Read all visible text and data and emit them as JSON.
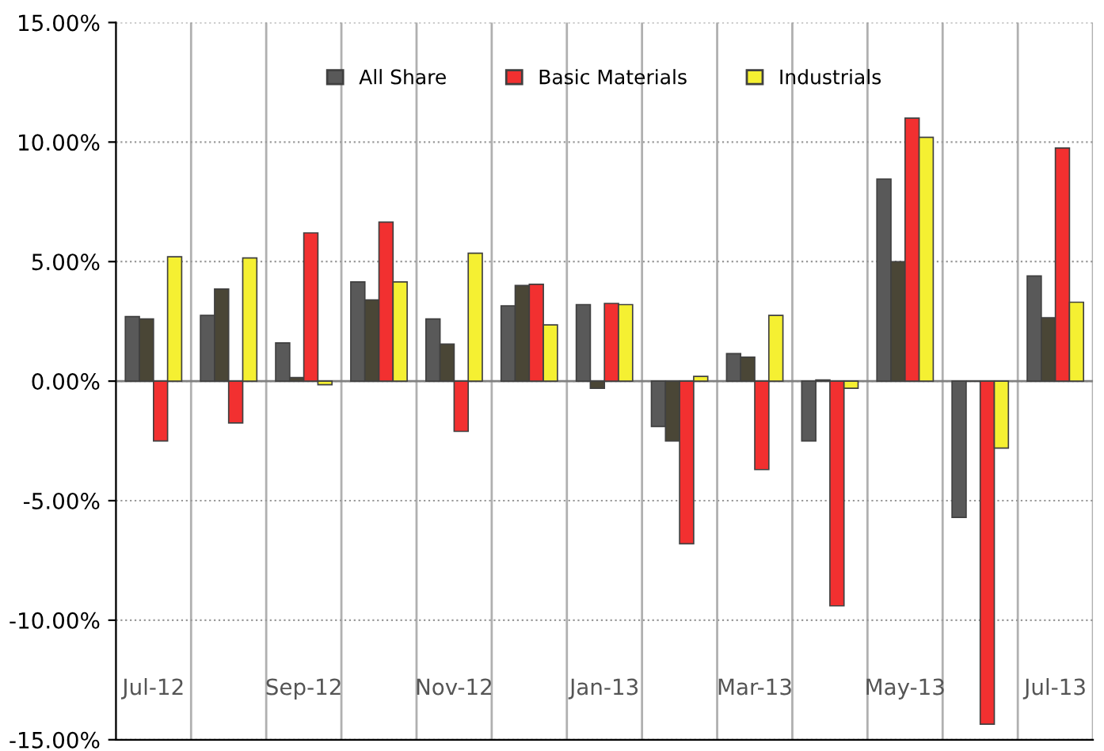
{
  "chart_data": {
    "type": "bar",
    "categories": [
      "Jul-12",
      null,
      "Sep-12",
      null,
      "Nov-12",
      null,
      "Jan-13",
      null,
      "Mar-13",
      null,
      "May-13",
      null,
      "Jul-13"
    ],
    "series": [
      {
        "name": "All Share",
        "color": "#595959",
        "values": [
          2.7,
          2.75,
          1.6,
          4.15,
          2.6,
          3.15,
          3.2,
          -1.9,
          1.15,
          -2.5,
          8.45,
          -5.7,
          4.4
        ]
      },
      {
        "color": "#4a4636",
        "values": [
          2.6,
          3.85,
          0.15,
          3.4,
          1.55,
          4.0,
          -0.3,
          -2.5,
          1.0,
          0.05,
          5.0,
          0,
          2.65
        ]
      },
      {
        "name": "Basic Materials",
        "color": "#f23030",
        "values": [
          -2.5,
          -1.75,
          6.2,
          6.65,
          -2.1,
          4.05,
          3.25,
          -6.8,
          -3.7,
          -9.4,
          11.0,
          -14.35,
          9.75
        ]
      },
      {
        "name": "Industrials",
        "color": "#f5f032",
        "values": [
          5.2,
          5.15,
          -0.15,
          4.15,
          5.35,
          2.35,
          3.2,
          0.2,
          2.75,
          -0.3,
          10.2,
          -2.8,
          3.3
        ]
      }
    ],
    "ylim": [
      -15,
      15
    ],
    "yticks": [
      {
        "value": -15,
        "label": "-15.00%"
      },
      {
        "value": -10,
        "label": "-10.00%"
      },
      {
        "value": -5,
        "label": "-5.00%"
      },
      {
        "value": 0,
        "label": "0.00%"
      },
      {
        "value": 5,
        "label": "5.00%"
      },
      {
        "value": 10,
        "label": "10.00%"
      },
      {
        "value": 15,
        "label": "15.00%"
      }
    ],
    "grid": true,
    "legend": "top"
  }
}
